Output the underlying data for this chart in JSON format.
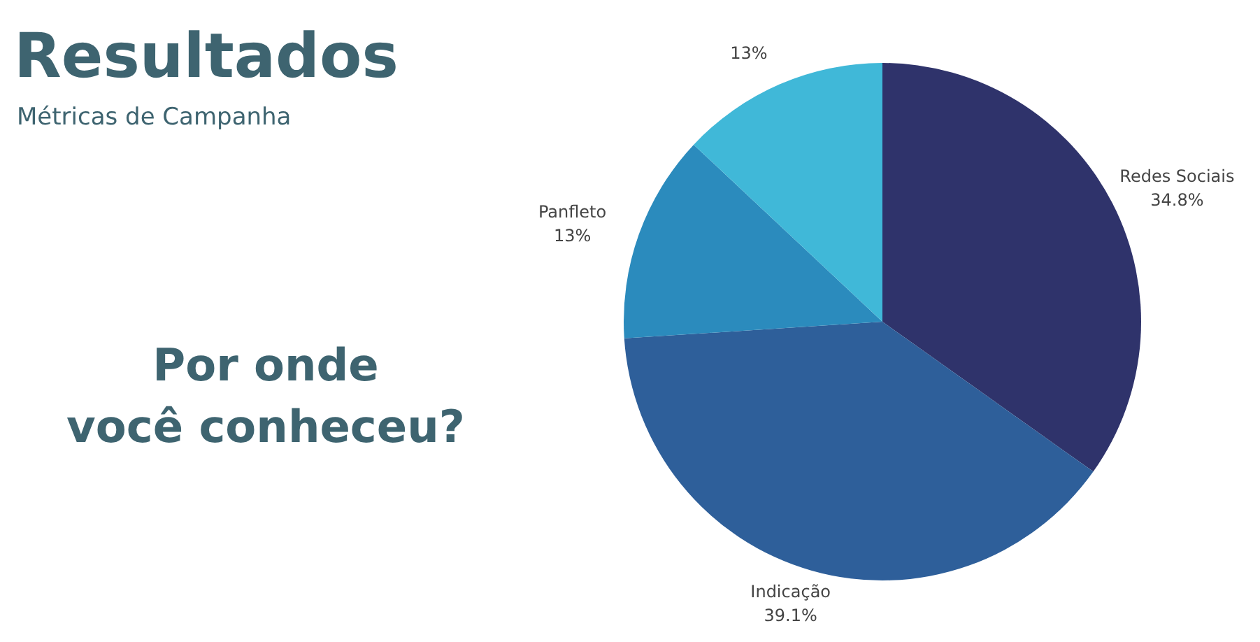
{
  "chart_data": {
    "type": "pie",
    "title": "Resultados",
    "subtitle": "Métricas de Campanha",
    "annotations": [
      "Por onde você conheceu?"
    ],
    "categories": [
      "Redes Sociais",
      "Indicação",
      "Panfleto",
      null
    ],
    "values": [
      34.8,
      39.1,
      13,
      13
    ],
    "value_labels": [
      "34.8%",
      "39.1%",
      "13%",
      "13%"
    ],
    "colors": [
      "#2f336b",
      "#2e5f9a",
      "#2b8bbd",
      "#40b8d8"
    ]
  }
}
